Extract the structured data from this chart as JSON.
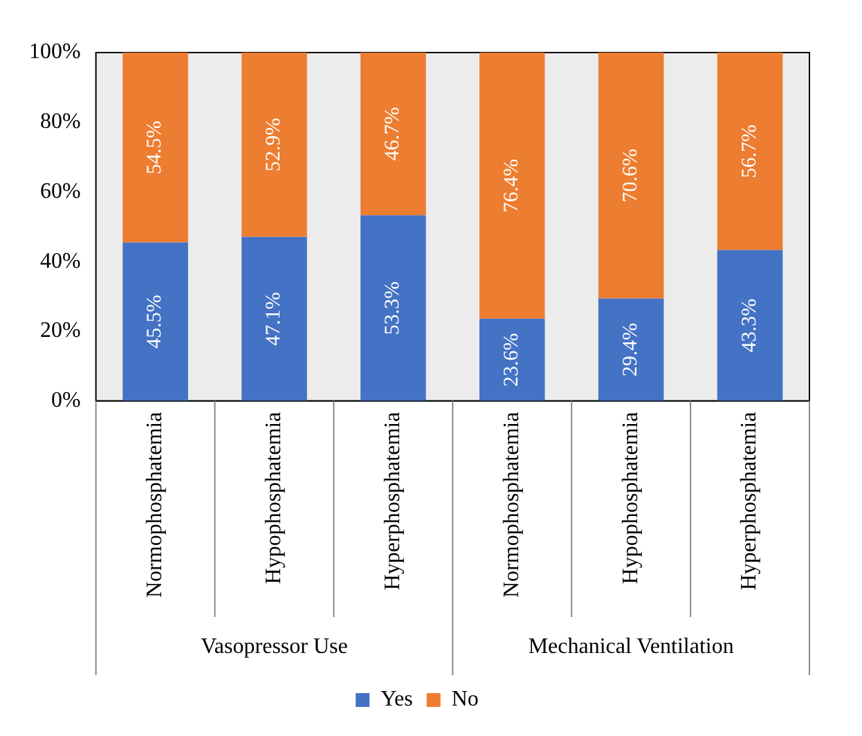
{
  "chart_data": {
    "type": "bar",
    "stacked": true,
    "categories": [
      "Normophosphatemia",
      "Hypophosphatemia",
      "Hyperphosphatemia",
      "Normophosphatemia",
      "Hypophosphatemia",
      "Hyperphosphatemia"
    ],
    "series": [
      {
        "name": "Yes",
        "color": "#4472c4",
        "values": [
          45.5,
          47.1,
          53.3,
          23.6,
          29.4,
          43.3
        ],
        "value_labels": [
          "45.5%",
          "47.1%",
          "53.3%",
          "23.6%",
          "29.4%",
          "43.3%"
        ]
      },
      {
        "name": "No",
        "color": "#ed7d31",
        "values": [
          54.5,
          52.9,
          46.7,
          76.4,
          70.6,
          56.7
        ],
        "value_labels": [
          "54.5%",
          "52.9%",
          "46.7%",
          "76.4%",
          "70.6%",
          "56.7%"
        ]
      }
    ],
    "ylim": [
      0,
      100
    ],
    "yticks": [
      {
        "value": 0,
        "label": "0%"
      },
      {
        "value": 20,
        "label": "20%"
      },
      {
        "value": 40,
        "label": "40%"
      },
      {
        "value": 60,
        "label": "60%"
      },
      {
        "value": 80,
        "label": "80%"
      },
      {
        "value": 100,
        "label": "100%"
      }
    ],
    "grid": false,
    "legend": "bottom",
    "annotations": [
      "Vasopressor Use",
      "Mechanical Ventilation"
    ]
  }
}
